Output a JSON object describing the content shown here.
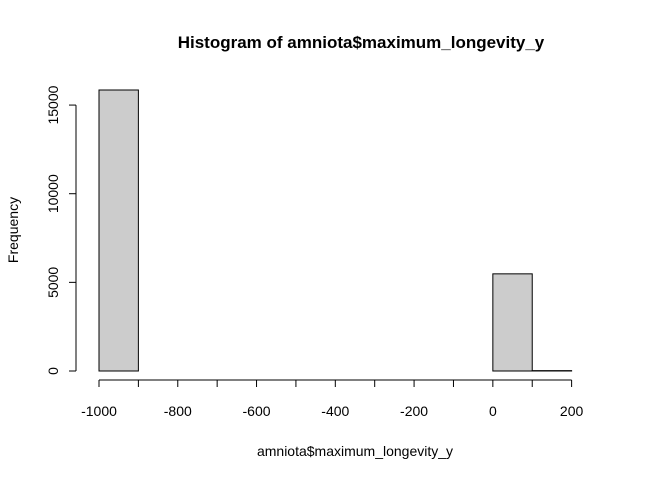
{
  "chart_data": {
    "type": "bar",
    "title": "Histogram of amniota$maximum_longevity_y",
    "xlabel": "amniota$maximum_longevity_y",
    "ylabel": "Frequency",
    "bins": [
      {
        "from": -1000,
        "to": -900,
        "count": 15850
      },
      {
        "from": -900,
        "to": -800,
        "count": 0
      },
      {
        "from": -800,
        "to": -700,
        "count": 0
      },
      {
        "from": -700,
        "to": -600,
        "count": 0
      },
      {
        "from": -600,
        "to": -500,
        "count": 0
      },
      {
        "from": -500,
        "to": -400,
        "count": 0
      },
      {
        "from": -400,
        "to": -300,
        "count": 0
      },
      {
        "from": -300,
        "to": -200,
        "count": 0
      },
      {
        "from": -200,
        "to": -100,
        "count": 0
      },
      {
        "from": -100,
        "to": 0,
        "count": 0
      },
      {
        "from": 0,
        "to": 100,
        "count": 5480
      },
      {
        "from": 100,
        "to": 200,
        "count": 20
      },
      {
        "from": 200,
        "to": 300,
        "count": 0
      }
    ],
    "xticks": [
      "-1000",
      "-800",
      "-600",
      "-400",
      "-200",
      "0",
      "200"
    ],
    "xtick_values": [
      -1000,
      -800,
      -600,
      -400,
      -200,
      0,
      200
    ],
    "yticks": [
      "0",
      "5000",
      "10000",
      "15000"
    ],
    "ytick_values": [
      0,
      5000,
      10000,
      15000
    ],
    "xlim": [
      -1000,
      300
    ],
    "ylim": [
      0,
      15850
    ],
    "bar_color": "#cccccc",
    "grid": false
  }
}
